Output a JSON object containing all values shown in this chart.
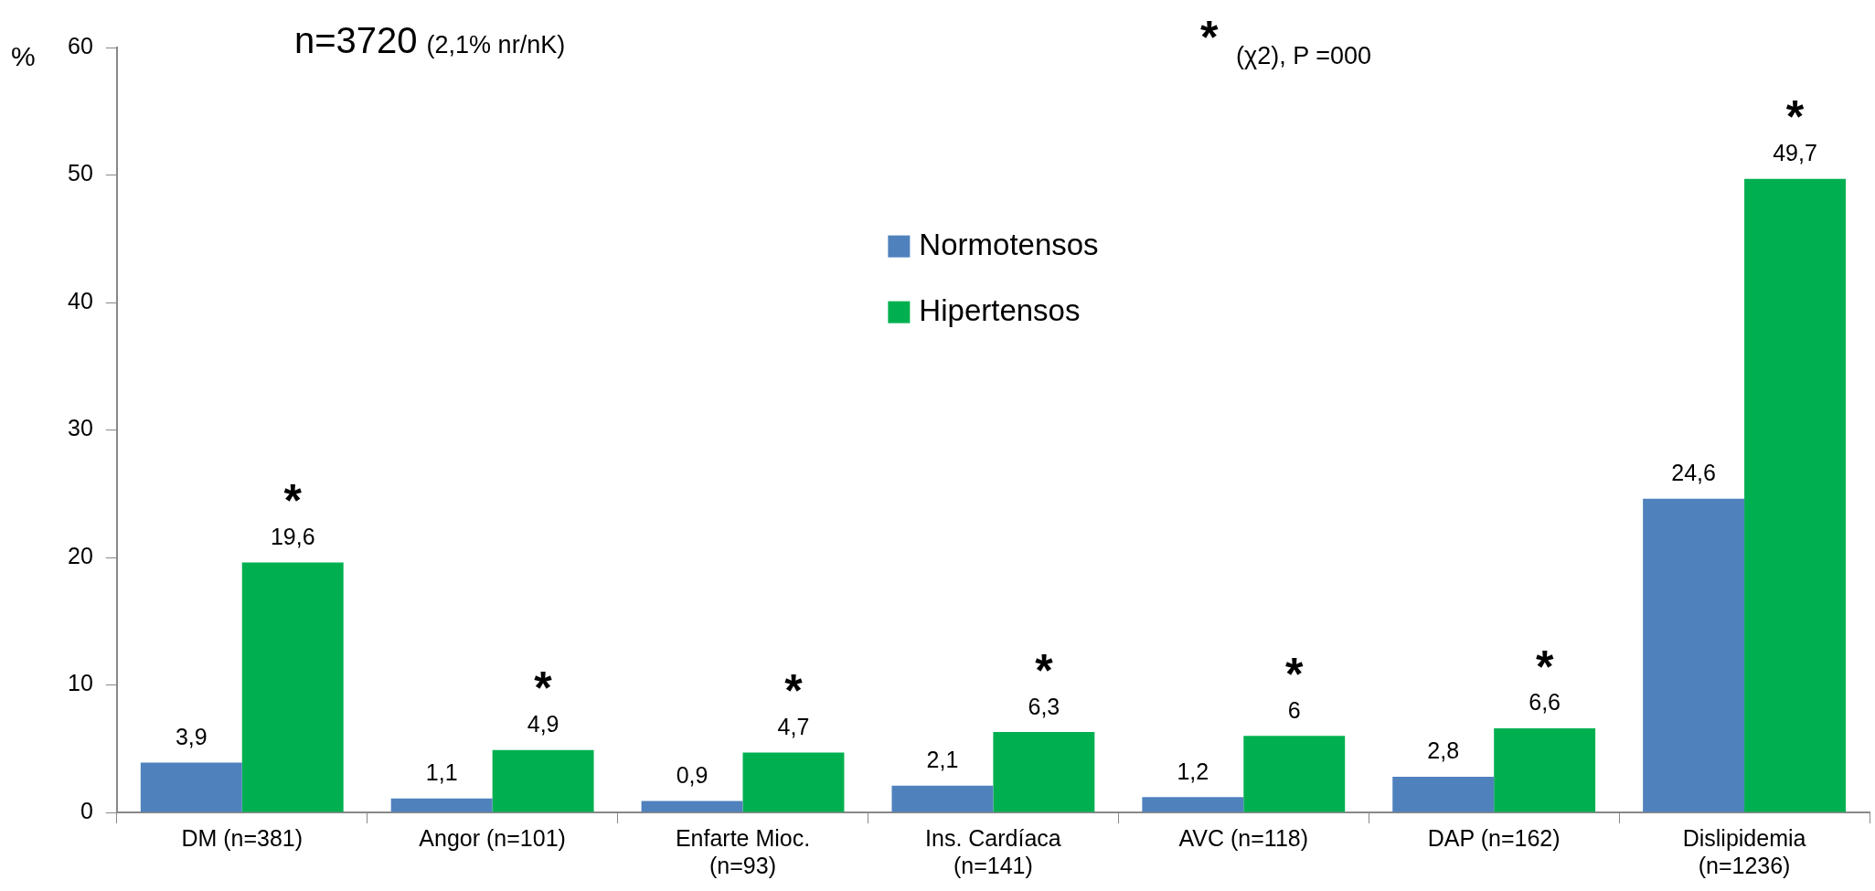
{
  "chart_data": {
    "type": "bar",
    "title": "n=3720",
    "subtitle": "(2,1% nr/nK)",
    "ylabel": "%",
    "categories": [
      "DM (n=381)",
      "Angor (n=101)",
      "Enfarte Mioc. (n=93)",
      "Ins. Cardíaca (n=141)",
      "AVC (n=118)",
      "DAP (n=162)",
      "Dislipidemia (n=1236)"
    ],
    "series": [
      {
        "name": "Normotensos",
        "color": "#4f81bd",
        "values": [
          3.9,
          1.1,
          0.9,
          2.1,
          1.2,
          2.8,
          24.6
        ],
        "value_labels": [
          "3,9",
          "1,1",
          "0,9",
          "2,1",
          "1,2",
          "2,8",
          "24,6"
        ]
      },
      {
        "name": "Hipertensos",
        "color": "#00b050",
        "values": [
          19.6,
          4.9,
          4.7,
          6.3,
          6,
          6.6,
          49.7
        ],
        "value_labels": [
          "19,6",
          "4,9",
          "4,7",
          "6,3",
          "6",
          "6,6",
          "49,7"
        ]
      }
    ],
    "ylim": [
      0,
      60
    ],
    "yticks": [
      0,
      10,
      20,
      30,
      40,
      50,
      60
    ],
    "grid": false,
    "legend": "top",
    "annotations": [
      "* (χ2), P =000",
      {
        "text": "*",
        "x": "DM (n=381)",
        "y": 19.6
      },
      {
        "text": "*",
        "x": "Angor (n=101)",
        "y": 4.9
      },
      {
        "text": "*",
        "x": "Enfarte Mioc. (n=93)",
        "y": 4.7
      },
      {
        "text": "*",
        "x": "Ins. Cardíaca (n=141)",
        "y": 6.3
      },
      {
        "text": "*",
        "x": "AVC (n=118)",
        "y": 6
      },
      {
        "text": "*",
        "x": "DAP (n=162)",
        "y": 6.6
      },
      {
        "text": "*",
        "x": "Dislipidemia (n=1236)",
        "y": 49.7
      }
    ]
  }
}
